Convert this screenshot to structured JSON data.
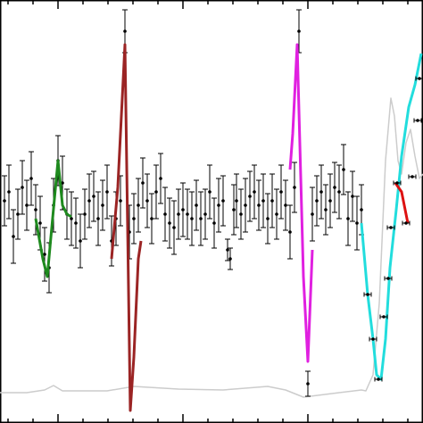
{
  "chart_data": {
    "type": "line",
    "xlim": [
      0,
      474
    ],
    "ylim": [
      474,
      0
    ],
    "xticks": [
      9,
      37,
      65,
      93,
      121,
      149,
      177,
      205,
      233,
      261,
      289,
      317,
      345,
      373,
      401,
      429,
      457
    ],
    "major_xtick_step": 140,
    "major_xtick_origin": 65,
    "points": {
      "color": "#000000",
      "x": [
        5,
        10,
        15,
        20,
        25,
        30,
        35,
        40,
        45,
        50,
        55,
        60,
        65,
        70,
        75,
        80,
        85,
        90,
        95,
        100,
        105,
        110,
        115,
        120,
        125,
        130,
        135,
        140,
        145,
        150,
        155,
        160,
        165,
        170,
        175,
        180,
        185,
        190,
        195,
        200,
        205,
        210,
        215,
        220,
        225,
        230,
        235,
        240,
        245,
        250,
        255,
        258,
        262,
        265,
        270,
        275,
        280,
        285,
        290,
        295,
        300,
        305,
        310,
        315,
        320,
        325,
        330,
        335,
        345,
        350,
        355,
        360,
        365,
        370,
        375,
        380,
        385,
        390,
        395,
        400,
        405
      ],
      "values": [
        225,
        215,
        265,
        240,
        210,
        230,
        200,
        235,
        250,
        285,
        300,
        230,
        180,
        205,
        240,
        245,
        250,
        270,
        240,
        225,
        220,
        245,
        230,
        215,
        270,
        245,
        225,
        35,
        260,
        245,
        230,
        205,
        225,
        245,
        215,
        200,
        240,
        250,
        255,
        240,
        235,
        240,
        245,
        230,
        245,
        240,
        215,
        250,
        230,
        225,
        280,
        290,
        235,
        225,
        240,
        230,
        220,
        215,
        230,
        225,
        245,
        225,
        240,
        215,
        230,
        260,
        210,
        35,
        430,
        240,
        225,
        215,
        235,
        225,
        210,
        215,
        190,
        245,
        220,
        250,
        235
      ],
      "errors": [
        28,
        30,
        30,
        28,
        30,
        28,
        30,
        28,
        30,
        30,
        28,
        30,
        28,
        30,
        28,
        30,
        28,
        30,
        28,
        30,
        28,
        30,
        28,
        30,
        28,
        30,
        28,
        24,
        30,
        28,
        30,
        28,
        30,
        28,
        30,
        28,
        30,
        28,
        30,
        28,
        30,
        28,
        30,
        28,
        30,
        28,
        30,
        28,
        30,
        28,
        12,
        12,
        28,
        30,
        28,
        30,
        28,
        30,
        28,
        30,
        28,
        30,
        28,
        30,
        28,
        30,
        28,
        24,
        14,
        30,
        28,
        30,
        28,
        30,
        28,
        30,
        28,
        30,
        28,
        30,
        28
      ]
    },
    "hpoints": {
      "color": "#000000",
      "x": [
        438,
        445,
        455,
        462,
        470,
        468,
        435,
        430,
        424,
        418,
        412
      ],
      "values": [
        255,
        205,
        250,
        198,
        88,
        135,
        312,
        355,
        425,
        380,
        330
      ],
      "xerrors": [
        4,
        4,
        4,
        4,
        4,
        4,
        4,
        4,
        4,
        4,
        4
      ]
    },
    "series": [
      {
        "color": "#cccccc",
        "x": [
          0,
          30,
          50,
          60,
          70,
          120,
          150,
          200,
          250,
          300,
          320,
          340,
          380,
          405,
          410,
          418,
          425,
          432,
          438,
          442,
          446,
          450,
          455,
          460,
          465,
          470,
          474
        ],
        "values": [
          440,
          440,
          437,
          432,
          438,
          438,
          433,
          436,
          437,
          433,
          437,
          445,
          440,
          437,
          438,
          420,
          340,
          180,
          110,
          130,
          180,
          195,
          160,
          145,
          175,
          200,
          195
        ]
      },
      {
        "color": "#1e8a1e",
        "x": [
          40,
          48,
          53,
          58,
          65,
          70,
          75,
          80
        ],
        "values": [
          245,
          290,
          310,
          255,
          180,
          230,
          240,
          243
        ]
      },
      {
        "color": "#9b2424",
        "x": [
          125,
          132,
          140,
          146,
          150,
          155,
          158
        ],
        "values": [
          290,
          210,
          50,
          460,
          400,
          290,
          270
        ]
      },
      {
        "color": "#e020e0",
        "x": [
          325,
          328,
          333,
          340,
          345,
          350
        ],
        "values": [
          190,
          150,
          50,
          310,
          405,
          280
        ]
      },
      {
        "color": "#22dddd",
        "x": [
          405,
          412,
          418,
          422,
          427,
          432,
          437,
          444,
          450,
          458,
          465,
          472
        ],
        "values": [
          250,
          330,
          380,
          420,
          425,
          380,
          300,
          235,
          175,
          120,
          95,
          60
        ]
      },
      {
        "color": "#dd1111",
        "x": [
          443,
          450,
          457
        ],
        "values": [
          205,
          215,
          250
        ]
      }
    ]
  }
}
